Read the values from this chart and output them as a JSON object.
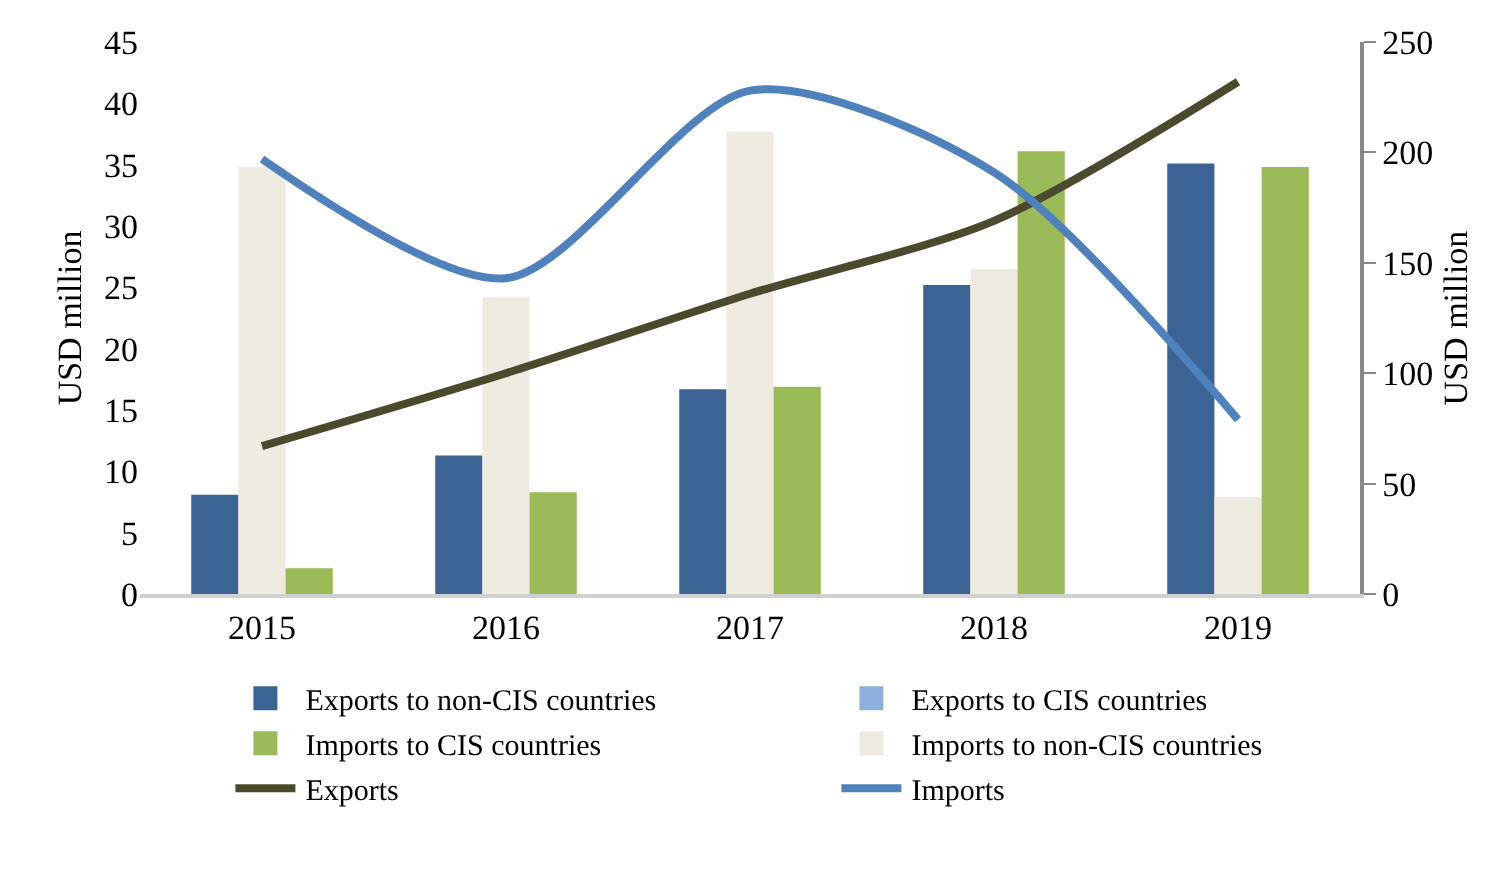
{
  "chart_data": {
    "type": "bar",
    "categories": [
      "2015",
      "2016",
      "2017",
      "2018",
      "2019"
    ],
    "ylabel": "USD million",
    "y2label": "USD million",
    "ylim": [
      0,
      45
    ],
    "yticks": [
      0,
      5,
      10,
      15,
      20,
      25,
      30,
      35,
      40,
      45
    ],
    "y2lim": [
      0,
      250
    ],
    "y2ticks": [
      0,
      50,
      100,
      150,
      200,
      250
    ],
    "legend": "bottom",
    "series": [
      {
        "name": "Exports to non-CIS countries",
        "color": "#3b6394",
        "values": [
          8.1,
          11.3,
          16.7,
          25.2,
          35.1
        ]
      },
      {
        "name": "Exports to CIS countries",
        "color": "#8eb0dc",
        "values": [
          null,
          null,
          null,
          null,
          null
        ]
      },
      {
        "name": "Imports to non-CIS countries",
        "color": "#eeebe1",
        "values": [
          34.8,
          24.2,
          37.7,
          26.5,
          7.9
        ]
      },
      {
        "name": "Imports to CIS countries",
        "color": "#9bbb59",
        "values": [
          2.1,
          8.3,
          16.9,
          36.1,
          34.8
        ]
      },
      {
        "name": "Exports",
        "type": "line",
        "axis": "y2",
        "color": "#4a4a2e",
        "values": [
          67,
          100,
          136,
          169,
          232
        ]
      },
      {
        "name": "Imports",
        "type": "line",
        "axis": "y2",
        "color": "#4f81bd",
        "values": [
          197,
          143,
          228,
          191,
          79
        ]
      }
    ]
  }
}
